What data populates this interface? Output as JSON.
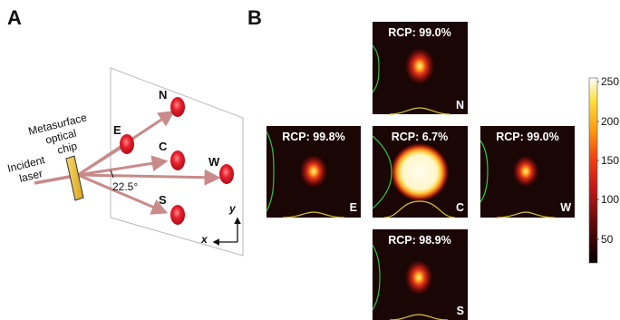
{
  "panel_a": {
    "letter": "A",
    "chip_label_line1": "Metasurface",
    "chip_label_line2": "optical",
    "chip_label_line3": "chip",
    "laser_label_line1": "Incident",
    "laser_label_line2": "laser",
    "angle_label": "22.5°",
    "spots": [
      "N",
      "E",
      "C",
      "W",
      "S"
    ],
    "axis_x": "x",
    "axis_y": "y"
  },
  "panel_b": {
    "letter": "B",
    "panels": [
      {
        "id": "N",
        "rcp": "RCP: 99.0%",
        "corner": "N"
      },
      {
        "id": "E",
        "rcp": "RCP: 99.8%",
        "corner": "E"
      },
      {
        "id": "C",
        "rcp": "RCP: 6.7%",
        "corner": "C"
      },
      {
        "id": "W",
        "rcp": "RCP: 99.0%",
        "corner": "W"
      },
      {
        "id": "S",
        "rcp": "RCP: 98.9%",
        "corner": "S"
      }
    ],
    "colorbar": {
      "ticks": [
        "250",
        "200",
        "150",
        "100",
        "50"
      ],
      "min": 20,
      "max": 255
    }
  },
  "colors": {
    "beam": "#c98a8a",
    "spot": "#e01c2a",
    "chip": "#f2c53a",
    "panel_bg": "#1a0605",
    "profile_green": "#38c23c",
    "profile_yellow": "#d8c23a"
  }
}
